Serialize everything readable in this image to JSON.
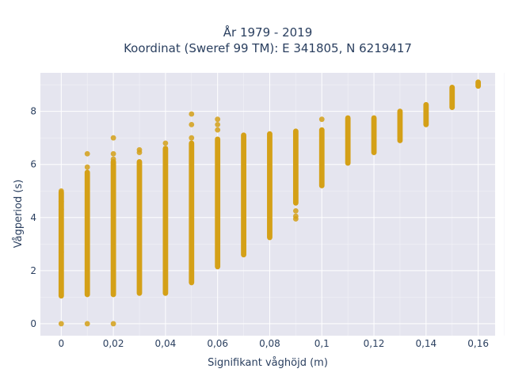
{
  "chart_data": {
    "type": "scatter",
    "title": [
      "År 1979 - 2019",
      "Koordinat (Sweref 99 TM): E 341805, N 6219417"
    ],
    "xlabel": "Signifikant våghöjd (m)",
    "ylabel": "Vågperiod (s)",
    "xlim": [
      -0.008,
      0.1665
    ],
    "ylim": [
      -0.45,
      9.45
    ],
    "x_ticks": [
      {
        "value": 0,
        "label": "0"
      },
      {
        "value": 0.02,
        "label": "0,02"
      },
      {
        "value": 0.04,
        "label": "0,04"
      },
      {
        "value": 0.06,
        "label": "0,06"
      },
      {
        "value": 0.08,
        "label": "0,08"
      },
      {
        "value": 0.1,
        "label": "0,1"
      },
      {
        "value": 0.12,
        "label": "0,12"
      },
      {
        "value": 0.14,
        "label": "0,14"
      },
      {
        "value": 0.16,
        "label": "0,16"
      }
    ],
    "y_ticks": [
      {
        "value": 0,
        "label": "0"
      },
      {
        "value": 2,
        "label": "2"
      },
      {
        "value": 4,
        "label": "4"
      },
      {
        "value": 6,
        "label": "6"
      },
      {
        "value": 8,
        "label": "8"
      }
    ],
    "grid": true,
    "marker_color": "#d4a017",
    "plot_background": "#e5e5ef",
    "columns": [
      {
        "x": 0.0,
        "y_min": 1.05,
        "y_max": 4.95,
        "outliers": [
          0,
          2.7,
          4.3,
          4.6,
          5.0
        ]
      },
      {
        "x": 0.01,
        "y_min": 1.1,
        "y_max": 5.7,
        "outliers": [
          0,
          5.9,
          6.4
        ]
      },
      {
        "x": 0.02,
        "y_min": 1.1,
        "y_max": 6.1,
        "outliers": [
          0,
          6.2,
          6.4,
          7.0
        ]
      },
      {
        "x": 0.03,
        "y_min": 1.15,
        "y_max": 6.1,
        "outliers": [
          6.45,
          6.55
        ]
      },
      {
        "x": 0.04,
        "y_min": 1.15,
        "y_max": 6.6,
        "outliers": [
          6.8
        ]
      },
      {
        "x": 0.05,
        "y_min": 1.55,
        "y_max": 6.8,
        "outliers": [
          7.0,
          7.5,
          7.9
        ]
      },
      {
        "x": 0.06,
        "y_min": 2.15,
        "y_max": 6.95,
        "outliers": [
          7.3,
          7.5,
          7.7
        ]
      },
      {
        "x": 0.07,
        "y_min": 2.6,
        "y_max": 7.1,
        "outliers": []
      },
      {
        "x": 0.08,
        "y_min": 3.25,
        "y_max": 7.15,
        "outliers": []
      },
      {
        "x": 0.09,
        "y_min": 4.55,
        "y_max": 7.25,
        "outliers": [
          3.95,
          4.05,
          4.25
        ]
      },
      {
        "x": 0.1,
        "y_min": 5.2,
        "y_max": 7.3,
        "outliers": [
          7.7
        ]
      },
      {
        "x": 0.11,
        "y_min": 6.05,
        "y_max": 7.75,
        "outliers": []
      },
      {
        "x": 0.12,
        "y_min": 6.45,
        "y_max": 7.75,
        "outliers": []
      },
      {
        "x": 0.13,
        "y_min": 6.9,
        "y_max": 8.0,
        "outliers": []
      },
      {
        "x": 0.14,
        "y_min": 7.5,
        "y_max": 8.25,
        "outliers": []
      },
      {
        "x": 0.15,
        "y_min": 8.15,
        "y_max": 8.9,
        "outliers": []
      },
      {
        "x": 0.16,
        "y_min": 8.95,
        "y_max": 9.1,
        "outliers": []
      }
    ]
  }
}
